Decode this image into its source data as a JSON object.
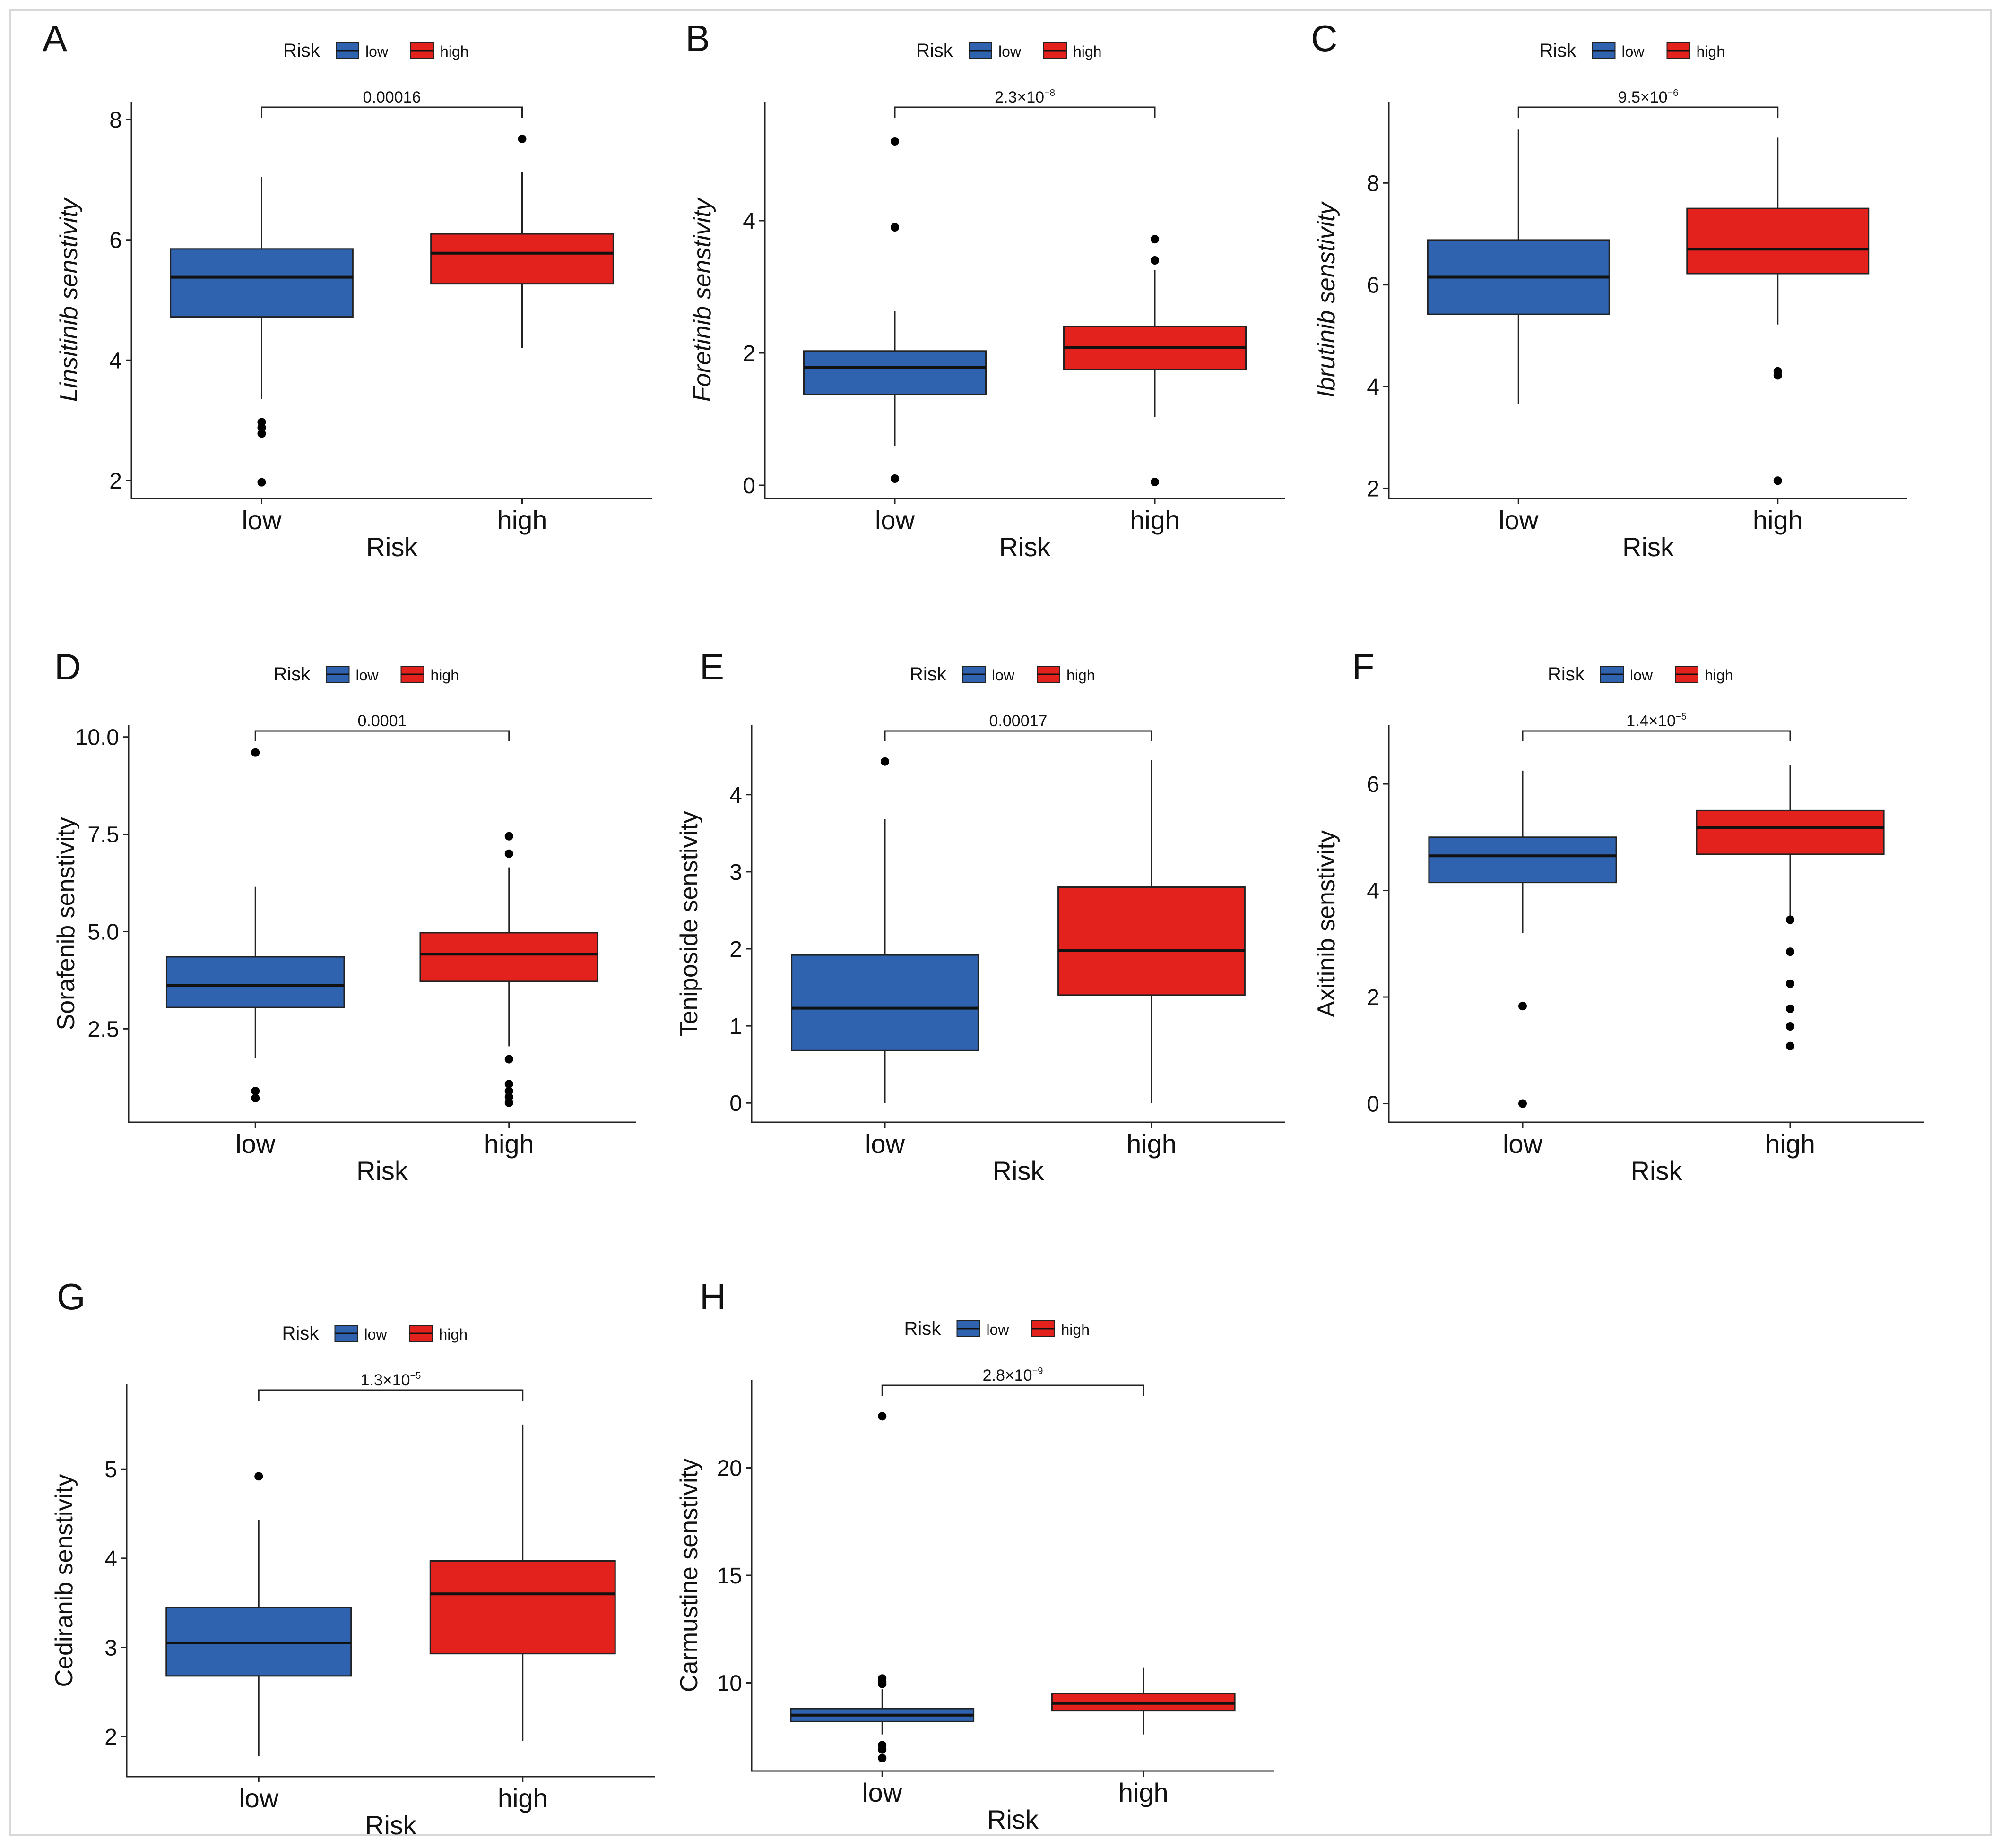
{
  "figure": {
    "colors": {
      "low": "#2f63b0",
      "high": "#e3221d"
    }
  },
  "chart_data": [
    {
      "panel": "A",
      "type": "boxplot",
      "legend": {
        "title": "Risk",
        "items": [
          "low",
          "high"
        ]
      },
      "ylabel": "Linsitinib senstivity",
      "ylabel_italic": true,
      "xlabel": "Risk",
      "categories": [
        "low",
        "high"
      ],
      "ylim": [
        1.7,
        8.3
      ],
      "yticks": [
        2,
        4,
        6,
        8
      ],
      "yticklabels": [
        "2",
        "4",
        "6",
        "8"
      ],
      "pvalue": {
        "base": "0.00016",
        "exp": ""
      },
      "boxes": [
        {
          "group": "low",
          "whisker_low": 3.35,
          "q1": 4.72,
          "median": 5.38,
          "q3": 5.85,
          "whisker_high": 7.05,
          "outliers": [
            2.97,
            2.88,
            2.78,
            1.97
          ]
        },
        {
          "group": "high",
          "whisker_low": 4.2,
          "q1": 5.27,
          "median": 5.78,
          "q3": 6.1,
          "whisker_high": 7.13,
          "outliers": [
            7.68
          ]
        }
      ]
    },
    {
      "panel": "B",
      "type": "boxplot",
      "legend": {
        "title": "Risk",
        "items": [
          "low",
          "high"
        ]
      },
      "ylabel": "Foretinib senstivity",
      "ylabel_italic": true,
      "xlabel": "Risk",
      "categories": [
        "low",
        "high"
      ],
      "ylim": [
        -0.2,
        5.8
      ],
      "yticks": [
        0,
        2,
        4
      ],
      "yticklabels": [
        "0",
        "2",
        "4"
      ],
      "pvalue": {
        "base": "2.3×10",
        "exp": "−8"
      },
      "boxes": [
        {
          "group": "low",
          "whisker_low": 0.6,
          "q1": 1.37,
          "median": 1.78,
          "q3": 2.03,
          "whisker_high": 2.63,
          "outliers": [
            0.1,
            3.9,
            5.2
          ]
        },
        {
          "group": "high",
          "whisker_low": 1.03,
          "q1": 1.75,
          "median": 2.08,
          "q3": 2.4,
          "whisker_high": 3.25,
          "outliers": [
            0.05,
            3.4,
            3.72
          ]
        }
      ]
    },
    {
      "panel": "C",
      "type": "boxplot",
      "legend": {
        "title": "Risk",
        "items": [
          "low",
          "high"
        ]
      },
      "ylabel": "Ibrutinib senstivity",
      "ylabel_italic": true,
      "xlabel": "Risk",
      "categories": [
        "low",
        "high"
      ],
      "ylim": [
        1.8,
        9.6
      ],
      "yticks": [
        2,
        4,
        6,
        8
      ],
      "yticklabels": [
        "2",
        "4",
        "6",
        "8"
      ],
      "pvalue": {
        "base": "9.5×10",
        "exp": "−6"
      },
      "boxes": [
        {
          "group": "low",
          "whisker_low": 3.65,
          "q1": 5.42,
          "median": 6.15,
          "q3": 6.88,
          "whisker_high": 9.05,
          "outliers": []
        },
        {
          "group": "high",
          "whisker_low": 5.22,
          "q1": 6.22,
          "median": 6.7,
          "q3": 7.5,
          "whisker_high": 8.9,
          "outliers": [
            4.3,
            4.22,
            2.15
          ]
        }
      ]
    },
    {
      "panel": "D",
      "type": "boxplot",
      "legend": {
        "title": "Risk",
        "items": [
          "low",
          "high"
        ]
      },
      "ylabel": "Sorafenib senstivity",
      "ylabel_italic": false,
      "xlabel": "Risk",
      "categories": [
        "low",
        "high"
      ],
      "ylim": [
        0.1,
        10.3
      ],
      "yticks": [
        2.5,
        5.0,
        7.5,
        10.0
      ],
      "yticklabels": [
        "2.5",
        "5.0",
        "7.5",
        "10.0"
      ],
      "pvalue": {
        "base": "0.0001",
        "exp": ""
      },
      "boxes": [
        {
          "group": "low",
          "whisker_low": 1.75,
          "q1": 3.05,
          "median": 3.62,
          "q3": 4.35,
          "whisker_high": 6.15,
          "outliers": [
            0.9,
            0.72,
            9.6
          ]
        },
        {
          "group": "high",
          "whisker_low": 2.05,
          "q1": 3.72,
          "median": 4.42,
          "q3": 4.97,
          "whisker_high": 6.65,
          "outliers": [
            1.72,
            1.08,
            0.9,
            0.75,
            0.6,
            7.0,
            7.45
          ]
        }
      ]
    },
    {
      "panel": "E",
      "type": "boxplot",
      "legend": {
        "title": "Risk",
        "items": [
          "low",
          "high"
        ]
      },
      "ylabel": "Teniposide senstivity",
      "ylabel_italic": false,
      "xlabel": "Risk",
      "categories": [
        "low",
        "high"
      ],
      "ylim": [
        -0.25,
        4.9
      ],
      "yticks": [
        0,
        1,
        2,
        3,
        4
      ],
      "yticklabels": [
        "0",
        "1",
        "2",
        "3",
        "4"
      ],
      "pvalue": {
        "base": "0.00017",
        "exp": ""
      },
      "boxes": [
        {
          "group": "low",
          "whisker_low": 0.0,
          "q1": 0.68,
          "median": 1.23,
          "q3": 1.92,
          "whisker_high": 3.68,
          "outliers": [
            4.43
          ]
        },
        {
          "group": "high",
          "whisker_low": 0.0,
          "q1": 1.4,
          "median": 1.98,
          "q3": 2.8,
          "whisker_high": 4.45,
          "outliers": []
        }
      ]
    },
    {
      "panel": "F",
      "type": "boxplot",
      "legend": {
        "title": "Risk",
        "items": [
          "low",
          "high"
        ]
      },
      "ylabel": "Axitinib senstivity",
      "ylabel_italic": false,
      "xlabel": "Risk",
      "categories": [
        "low",
        "high"
      ],
      "ylim": [
        -0.35,
        7.1
      ],
      "yticks": [
        0,
        2,
        4,
        6
      ],
      "yticklabels": [
        "0",
        "2",
        "4",
        "6"
      ],
      "pvalue": {
        "base": "1.4×10",
        "exp": "−5"
      },
      "boxes": [
        {
          "group": "low",
          "whisker_low": 3.2,
          "q1": 4.15,
          "median": 4.65,
          "q3": 5.0,
          "whisker_high": 6.25,
          "outliers": [
            1.83,
            0.0
          ]
        },
        {
          "group": "high",
          "whisker_low": 3.45,
          "q1": 4.68,
          "median": 5.18,
          "q3": 5.5,
          "whisker_high": 6.35,
          "outliers": [
            3.45,
            2.85,
            2.25,
            1.78,
            1.45,
            1.08
          ]
        }
      ]
    },
    {
      "panel": "G",
      "type": "boxplot",
      "legend": {
        "title": "Risk",
        "items": [
          "low",
          "high"
        ]
      },
      "ylabel": "Cediranib senstivity",
      "ylabel_italic": false,
      "xlabel": "Risk",
      "categories": [
        "low",
        "high"
      ],
      "ylim": [
        1.55,
        5.95
      ],
      "yticks": [
        2,
        3,
        4,
        5
      ],
      "yticklabels": [
        "2",
        "3",
        "4",
        "5"
      ],
      "pvalue": {
        "base": "1.3×10",
        "exp": "−5"
      },
      "boxes": [
        {
          "group": "low",
          "whisker_low": 1.78,
          "q1": 2.68,
          "median": 3.05,
          "q3": 3.45,
          "whisker_high": 4.43,
          "outliers": [
            4.92
          ]
        },
        {
          "group": "high",
          "whisker_low": 1.95,
          "q1": 2.93,
          "median": 3.6,
          "q3": 3.97,
          "whisker_high": 5.5,
          "outliers": []
        }
      ]
    },
    {
      "panel": "H",
      "type": "boxplot",
      "legend": {
        "title": "Risk",
        "items": [
          "low",
          "high"
        ]
      },
      "ylabel": "Carmustine senstivity",
      "ylabel_italic": false,
      "xlabel": "Risk",
      "categories": [
        "low",
        "high"
      ],
      "ylim": [
        5.9,
        24.1
      ],
      "yticks": [
        10,
        15,
        20
      ],
      "yticklabels": [
        "10",
        "15",
        "20"
      ],
      "pvalue": {
        "base": "2.8×10",
        "exp": "−9"
      },
      "boxes": [
        {
          "group": "low",
          "whisker_low": 7.6,
          "q1": 8.2,
          "median": 8.5,
          "q3": 8.8,
          "whisker_high": 9.7,
          "outliers": [
            10.2,
            10.05,
            9.95,
            7.1,
            6.9,
            6.5,
            22.4
          ]
        },
        {
          "group": "high",
          "whisker_low": 7.6,
          "q1": 8.7,
          "median": 9.05,
          "q3": 9.5,
          "whisker_high": 10.7,
          "outliers": []
        }
      ]
    }
  ]
}
